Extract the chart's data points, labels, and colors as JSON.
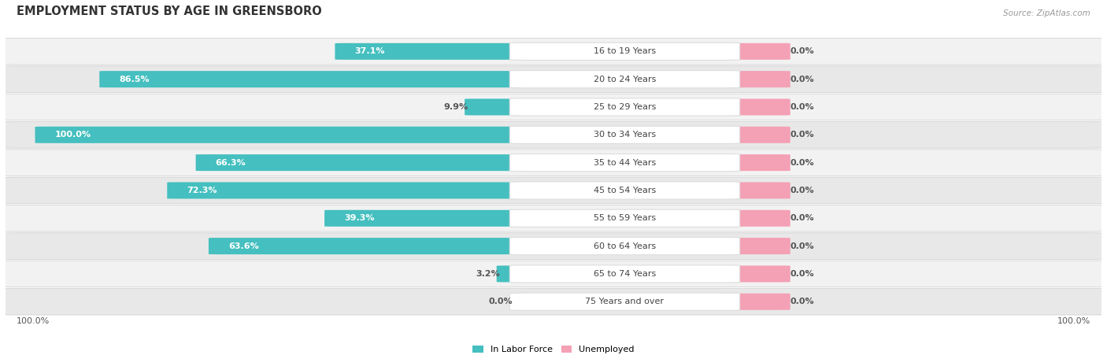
{
  "title": "EMPLOYMENT STATUS BY AGE IN GREENSBORO",
  "source": "Source: ZipAtlas.com",
  "categories": [
    "16 to 19 Years",
    "20 to 24 Years",
    "25 to 29 Years",
    "30 to 34 Years",
    "35 to 44 Years",
    "45 to 54 Years",
    "55 to 59 Years",
    "60 to 64 Years",
    "65 to 74 Years",
    "75 Years and over"
  ],
  "in_labor_force": [
    37.1,
    86.5,
    9.9,
    100.0,
    66.3,
    72.3,
    39.3,
    63.6,
    3.2,
    0.0
  ],
  "unemployed": [
    0.0,
    0.0,
    0.0,
    0.0,
    0.0,
    0.0,
    0.0,
    0.0,
    0.0,
    0.0
  ],
  "labor_force_color": "#45BFBF",
  "unemployed_color": "#F4A0B5",
  "row_bg_odd": "#F2F2F2",
  "row_bg_even": "#E8E8E8",
  "pill_bg": "#FFFFFF",
  "label_inside_color": "#FFFFFF",
  "label_outside_color": "#555555",
  "max_value": 100.0,
  "left_axis_label": "100.0%",
  "right_axis_label": "100.0%",
  "legend_labor": "In Labor Force",
  "legend_unemployed": "Unemployed",
  "title_fontsize": 10.5,
  "source_fontsize": 7.5,
  "bar_label_fontsize": 8,
  "cat_label_fontsize": 8,
  "legend_fontsize": 8,
  "axis_label_fontsize": 8
}
